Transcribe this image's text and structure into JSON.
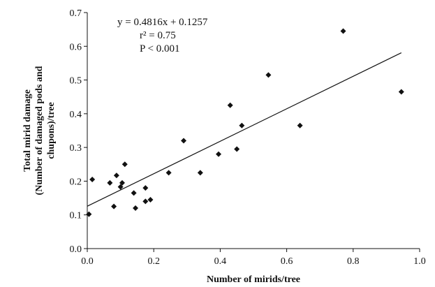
{
  "chart_data": {
    "type": "scatter",
    "xlabel": "Number of mirids/tree",
    "ylabel_lines": [
      "Total mirid damage",
      "(Number of  damaged pods and",
      "chupons)/tree"
    ],
    "xlim": [
      0.0,
      1.0
    ],
    "ylim": [
      0.0,
      0.7
    ],
    "x_ticks": [
      "0.0",
      "0.2",
      "0.4",
      "0.6",
      "0.8",
      "1.0"
    ],
    "y_ticks": [
      "0.0",
      "0.1",
      "0.2",
      "0.3",
      "0.4",
      "0.5",
      "0.6",
      "0.7"
    ],
    "grid": false,
    "legend": "none",
    "marker": "diamond",
    "marker_color": "#111111",
    "points": [
      [
        0.005,
        0.102
      ],
      [
        0.015,
        0.205
      ],
      [
        0.068,
        0.195
      ],
      [
        0.08,
        0.125
      ],
      [
        0.088,
        0.217
      ],
      [
        0.1,
        0.183
      ],
      [
        0.105,
        0.195
      ],
      [
        0.113,
        0.25
      ],
      [
        0.14,
        0.165
      ],
      [
        0.145,
        0.12
      ],
      [
        0.175,
        0.14
      ],
      [
        0.175,
        0.18
      ],
      [
        0.19,
        0.145
      ],
      [
        0.245,
        0.225
      ],
      [
        0.29,
        0.32
      ],
      [
        0.34,
        0.225
      ],
      [
        0.395,
        0.28
      ],
      [
        0.43,
        0.425
      ],
      [
        0.45,
        0.295
      ],
      [
        0.465,
        0.365
      ],
      [
        0.545,
        0.515
      ],
      [
        0.64,
        0.365
      ],
      [
        0.77,
        0.645
      ],
      [
        0.945,
        0.465
      ]
    ],
    "trendline": {
      "slope": 0.4816,
      "intercept": 0.1257,
      "x_range": [
        0.0,
        0.945
      ]
    },
    "annotations": [
      "y = 0.4816x + 0.1257",
      "r² = 0.75",
      "P < 0.001"
    ]
  }
}
